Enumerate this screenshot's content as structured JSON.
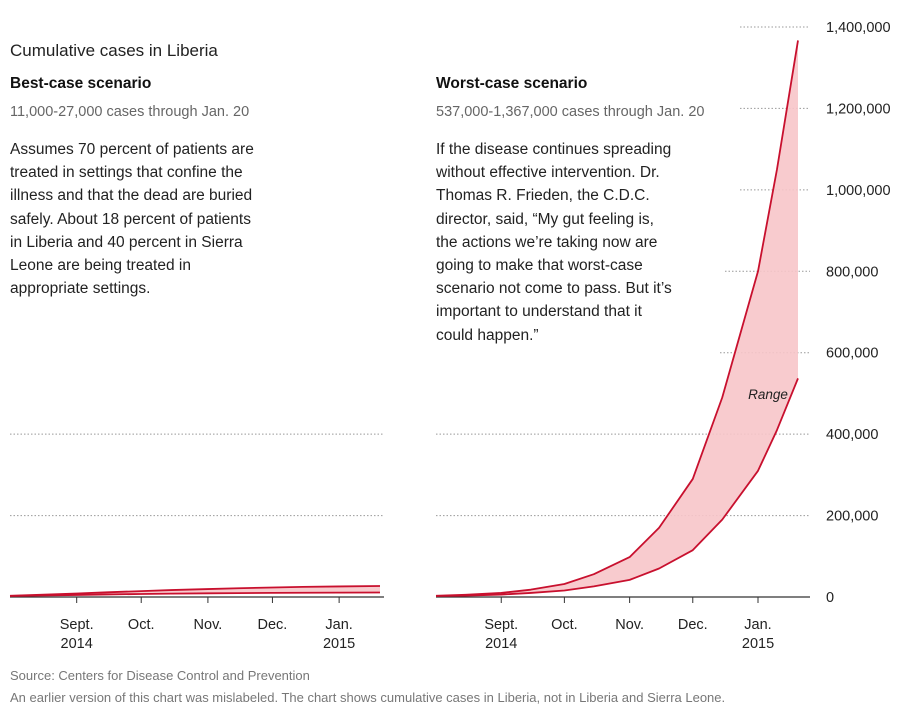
{
  "title": "Cumulative cases in Liberia",
  "panels": [
    {
      "heading": "Best-case scenario",
      "subheading": "11,000-27,000 cases through Jan. 20",
      "description_lines": [
        "Assumes 70 percent of patients are",
        "treated in settings that confine the",
        "illness and that the dead are buried",
        "safely. About 18 percent of patients",
        "in Liberia and 40 percent in Sierra",
        "Leone are being treated in",
        "appropriate settings."
      ]
    },
    {
      "heading": "Worst-case scenario",
      "subheading": "537,000-1,367,000 cases through Jan. 20",
      "description_lines": [
        "If the disease continues spreading",
        "without effective intervention. Dr.",
        "Thomas R. Frieden, the C.D.C.",
        "director, said, “My gut feeling is,",
        "the actions we’re taking now are",
        "going to make that worst-case",
        "scenario not come to pass. But it’s",
        "important to understand that it",
        "could happen.”"
      ]
    }
  ],
  "range_label": "Range",
  "x_ticks": [
    {
      "label": "Sept.",
      "sublabel": "2014",
      "date": "2014-09-01"
    },
    {
      "label": "Oct.",
      "sublabel": "",
      "date": "2014-10-01"
    },
    {
      "label": "Nov.",
      "sublabel": "",
      "date": "2014-11-01"
    },
    {
      "label": "Dec.",
      "sublabel": "",
      "date": "2014-12-01"
    },
    {
      "label": "Jan.",
      "sublabel": "2015",
      "date": "2015-01-01"
    }
  ],
  "y_ticks": [
    0,
    200000,
    400000,
    600000,
    800000,
    1000000,
    1200000,
    1400000
  ],
  "y_tick_labels": [
    "0",
    "200,000",
    "400,000",
    "600,000",
    "800,000",
    "1,000,000",
    "1,200,000",
    "1,400,000"
  ],
  "source": "Source: Centers for Disease Control and Prevention",
  "correction_note": "An earlier version of this chart was mislabeled. The chart shows cumulative cases in Liberia, not in Liberia and Sierra Leone.",
  "colors": {
    "line": "#c8102e",
    "fill": "#f7c5c9",
    "grid": "#999999",
    "axis": "#333333"
  },
  "chart_data": [
    {
      "type": "area",
      "title": "Best-case scenario",
      "ylim": [
        0,
        1400000
      ],
      "grid": true,
      "x": [
        "2014-08-01",
        "2014-08-15",
        "2014-09-01",
        "2014-09-15",
        "2014-10-01",
        "2014-10-15",
        "2014-11-01",
        "2014-11-15",
        "2014-12-01",
        "2014-12-15",
        "2015-01-01",
        "2015-01-20"
      ],
      "series": [
        {
          "name": "Low",
          "values": [
            2500,
            3600,
            5000,
            6300,
            7400,
            8300,
            9000,
            9600,
            10100,
            10500,
            10800,
            11000
          ]
        },
        {
          "name": "High",
          "values": [
            3000,
            5500,
            8500,
            11500,
            14500,
            17000,
            19500,
            21500,
            23300,
            24800,
            26000,
            27000
          ]
        }
      ]
    },
    {
      "type": "area",
      "title": "Worst-case scenario",
      "ylim": [
        0,
        1400000
      ],
      "grid": true,
      "x": [
        "2014-08-01",
        "2014-08-15",
        "2014-09-01",
        "2014-09-15",
        "2014-10-01",
        "2014-10-15",
        "2014-11-01",
        "2014-11-15",
        "2014-12-01",
        "2014-12-15",
        "2015-01-01",
        "2015-01-10",
        "2015-01-20"
      ],
      "series": [
        {
          "name": "Low",
          "values": [
            2500,
            3500,
            6000,
            10000,
            16000,
            26000,
            42000,
            70000,
            115000,
            190000,
            310000,
            410000,
            537000
          ]
        },
        {
          "name": "High",
          "values": [
            3000,
            5500,
            10000,
            18000,
            32000,
            56000,
            98000,
            170000,
            290000,
            490000,
            800000,
            1050000,
            1367000
          ]
        }
      ]
    }
  ]
}
